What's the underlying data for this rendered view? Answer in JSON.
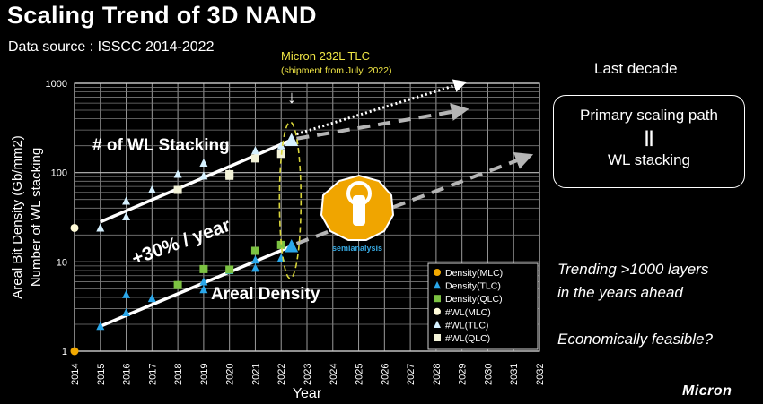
{
  "header": {
    "title": "Scaling Trend of 3D NAND",
    "source": "Data source : ISSCC 2014-2022"
  },
  "side": {
    "last_decade": "Last decade",
    "box_line1": "Primary scaling path",
    "box_line2": "||",
    "box_line3": "WL stacking",
    "trend_line1": "Trending >1000 layers",
    "trend_line2": "in the years ahead",
    "economics": "Economically feasible?"
  },
  "logo_text": "Micron",
  "watermark_text": "semianalysis",
  "chart_data": {
    "type": "scatter",
    "xlabel": "Year",
    "ylabel_line1": "Areal Bit Density (Gb/mm2)",
    "ylabel_line2": "Number of WL stacking",
    "yscale": "log",
    "xlim": [
      2014,
      2032
    ],
    "ylim": [
      1,
      1000
    ],
    "x_ticks": [
      "2014",
      "2015",
      "2016",
      "2017",
      "2018",
      "2019",
      "2020",
      "2021",
      "2022",
      "2023",
      "2024",
      "2025",
      "2026",
      "2027",
      "2028",
      "2029",
      "2030",
      "2031",
      "2032"
    ],
    "y_ticks": [
      {
        "v": 1,
        "label": "1"
      },
      {
        "v": 10,
        "label": "10"
      },
      {
        "v": 100,
        "label": "100"
      },
      {
        "v": 1000,
        "label": "1000"
      }
    ],
    "grid": true,
    "legend_position": "bottom-right",
    "annotations": {
      "micron_line1": "Micron 232L TLC",
      "micron_line2": "(shipment from July, 2022)",
      "micron_arrow": "↓",
      "wl_stacking": "# of WL Stacking",
      "growth": "+30% / year",
      "areal_density": "Areal Density"
    },
    "series": [
      {
        "name": "Density(MLC)",
        "marker": "circle",
        "color": "#f2a900",
        "filled": true,
        "points": [
          [
            2014,
            1
          ]
        ]
      },
      {
        "name": "Density(TLC)",
        "marker": "triangle",
        "color": "#2aa7ea",
        "filled": true,
        "points": [
          [
            2015,
            1.9
          ],
          [
            2016,
            4.3
          ],
          [
            2016,
            2.7
          ],
          [
            2017,
            3.9
          ],
          [
            2019,
            6.0
          ],
          [
            2019,
            4.9
          ],
          [
            2020,
            8.0
          ],
          [
            2021,
            8.5
          ],
          [
            2021,
            10.5
          ],
          [
            2022,
            11.0
          ],
          [
            2022.4,
            15.0
          ]
        ]
      },
      {
        "name": "Density(QLC)",
        "marker": "square",
        "color": "#7cc242",
        "filled": true,
        "points": [
          [
            2018,
            5.5
          ],
          [
            2019,
            8.3
          ],
          [
            2020,
            8.2
          ],
          [
            2021,
            13.3
          ],
          [
            2022,
            15.5
          ]
        ]
      },
      {
        "name": "#WL(MLC)",
        "marker": "circle",
        "color": "#fffbd8",
        "filled": true,
        "points": [
          [
            2014,
            24
          ]
        ]
      },
      {
        "name": "#WL(TLC)",
        "marker": "triangle",
        "color": "#d6f1ff",
        "filled": true,
        "points": [
          [
            2015,
            24
          ],
          [
            2016,
            48
          ],
          [
            2016,
            32
          ],
          [
            2017,
            64
          ],
          [
            2018,
            96
          ],
          [
            2019,
            128
          ],
          [
            2019,
            92
          ],
          [
            2020,
            96
          ],
          [
            2021,
            176
          ],
          [
            2022,
            176
          ],
          [
            2022,
            200
          ],
          [
            2022.4,
            232
          ]
        ]
      },
      {
        "name": "#WL(QLC)",
        "marker": "square",
        "color": "#f3f3d8",
        "filled": true,
        "points": [
          [
            2018,
            64
          ],
          [
            2020,
            92
          ],
          [
            2020,
            96
          ],
          [
            2021,
            144
          ],
          [
            2022,
            162
          ]
        ]
      }
    ],
    "trend_lines": [
      {
        "name": "WL trend fit",
        "style": "solid",
        "color": "#ffffff",
        "from": [
          2015,
          28
        ],
        "to": [
          2022.4,
          232
        ]
      },
      {
        "name": "Density trend fit",
        "style": "solid",
        "color": "#ffffff",
        "from": [
          2015,
          1.9
        ],
        "to": [
          2022.4,
          15
        ]
      },
      {
        "name": "WL projection dotted",
        "style": "dotted",
        "color": "#ffffff",
        "from": [
          2022.6,
          270
        ],
        "to": [
          2029,
          1000
        ]
      },
      {
        "name": "WL projection dashed",
        "style": "dashed",
        "color": "#b5b5b5",
        "from": [
          2022.6,
          240
        ],
        "to": [
          2029,
          500
        ]
      },
      {
        "name": "Density projection",
        "style": "dashed",
        "color": "#b5b5b5",
        "from": [
          2022.6,
          16
        ],
        "to": [
          2031.5,
          150
        ]
      }
    ]
  }
}
